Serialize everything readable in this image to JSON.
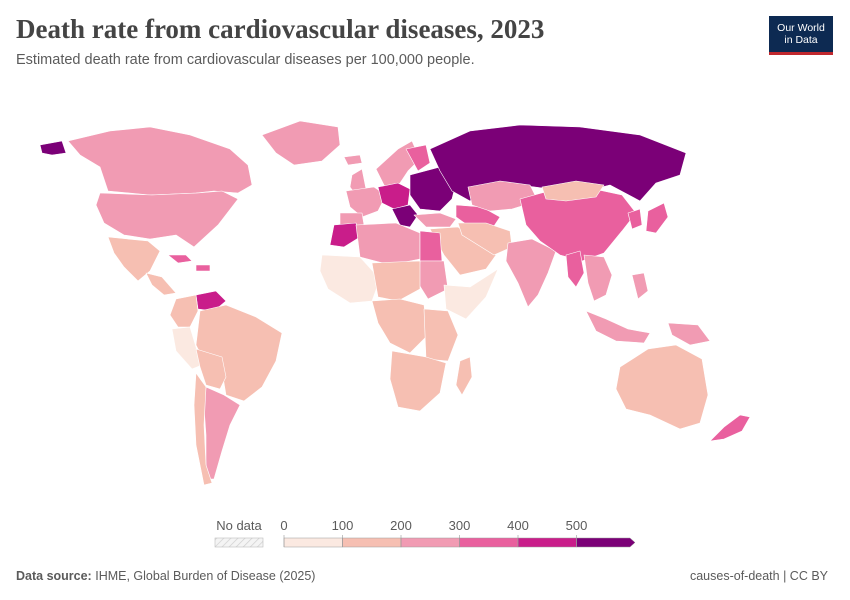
{
  "title": "Death rate from cardiovascular diseases, 2023",
  "subtitle": "Estimated death rate from cardiovascular diseases per 100,000 people.",
  "logo": {
    "line1": "Our World",
    "line2": "in Data"
  },
  "footer": {
    "source_label": "Data source:",
    "source_text": "IHME, Global Burden of Disease (2025)",
    "right_text": "causes-of-death | CC BY"
  },
  "legend": {
    "no_data_label": "No data",
    "ticks": [
      "0",
      "100",
      "200",
      "300",
      "400",
      "500"
    ],
    "bins": [
      {
        "from": 0,
        "to": 100,
        "color": "#fbe9e1"
      },
      {
        "from": 100,
        "to": 200,
        "color": "#f6bfb2"
      },
      {
        "from": 200,
        "to": 300,
        "color": "#f19bb3"
      },
      {
        "from": 300,
        "to": 400,
        "color": "#e9609e"
      },
      {
        "from": 400,
        "to": 500,
        "color": "#c91d8a"
      },
      {
        "from": 500,
        "to": null,
        "color": "#7b0077"
      }
    ]
  },
  "colors": {
    "no_data": "#e6e6e6",
    "ocean": "#ffffff",
    "border": "#ffffff"
  },
  "regions": [
    {
      "name": "Alaska",
      "bin": 5
    },
    {
      "name": "Canada",
      "bin": 2
    },
    {
      "name": "Greenland",
      "bin": 2
    },
    {
      "name": "United States",
      "bin": 2
    },
    {
      "name": "Mexico",
      "bin": 1
    },
    {
      "name": "Central America",
      "bin": 1
    },
    {
      "name": "Caribbean",
      "bin": 3
    },
    {
      "name": "Venezuela",
      "bin": 4
    },
    {
      "name": "Colombia & Ecuador",
      "bin": 1
    },
    {
      "name": "Peru",
      "bin": 0
    },
    {
      "name": "Brazil",
      "bin": 1
    },
    {
      "name": "Bolivia & Paraguay",
      "bin": 1
    },
    {
      "name": "Argentina",
      "bin": 2
    },
    {
      "name": "Chile",
      "bin": 1
    },
    {
      "name": "Iceland",
      "bin": 2
    },
    {
      "name": "Scandinavia",
      "bin": 2
    },
    {
      "name": "Finland",
      "bin": 3
    },
    {
      "name": "United Kingdom",
      "bin": 2
    },
    {
      "name": "Western Europe",
      "bin": 2
    },
    {
      "name": "Iberia",
      "bin": 2
    },
    {
      "name": "Central Europe",
      "bin": 4
    },
    {
      "name": "Balkans",
      "bin": 5
    },
    {
      "name": "Eastern Europe",
      "bin": 5
    },
    {
      "name": "Russia",
      "bin": 5
    },
    {
      "name": "Turkey",
      "bin": 2
    },
    {
      "name": "Caucasus & Central Asia",
      "bin": 3
    },
    {
      "name": "Kazakhstan",
      "bin": 2
    },
    {
      "name": "Middle East",
      "bin": 1
    },
    {
      "name": "Iran & Afghanistan",
      "bin": 1
    },
    {
      "name": "India",
      "bin": 2
    },
    {
      "name": "China",
      "bin": 3
    },
    {
      "name": "Mongolia",
      "bin": 1
    },
    {
      "name": "Japan",
      "bin": 3
    },
    {
      "name": "Koreas",
      "bin": 3
    },
    {
      "name": "Myanmar",
      "bin": 3
    },
    {
      "name": "Southeast Asia",
      "bin": 2
    },
    {
      "name": "Indonesia",
      "bin": 2
    },
    {
      "name": "Philippines",
      "bin": 2
    },
    {
      "name": "Papua New Guinea",
      "bin": 2
    },
    {
      "name": "Australia",
      "bin": 1
    },
    {
      "name": "New Zealand",
      "bin": 3
    },
    {
      "name": "Morocco",
      "bin": 4
    },
    {
      "name": "Algeria & Libya",
      "bin": 2
    },
    {
      "name": "Egypt",
      "bin": 3
    },
    {
      "name": "Sudan",
      "bin": 2
    },
    {
      "name": "West Africa",
      "bin": 0
    },
    {
      "name": "Sahel",
      "bin": 1
    },
    {
      "name": "Central Africa",
      "bin": 1
    },
    {
      "name": "Horn of Africa",
      "bin": 0
    },
    {
      "name": "East Africa",
      "bin": 1
    },
    {
      "name": "Southern Africa",
      "bin": 1
    },
    {
      "name": "Madagascar",
      "bin": 1
    }
  ]
}
